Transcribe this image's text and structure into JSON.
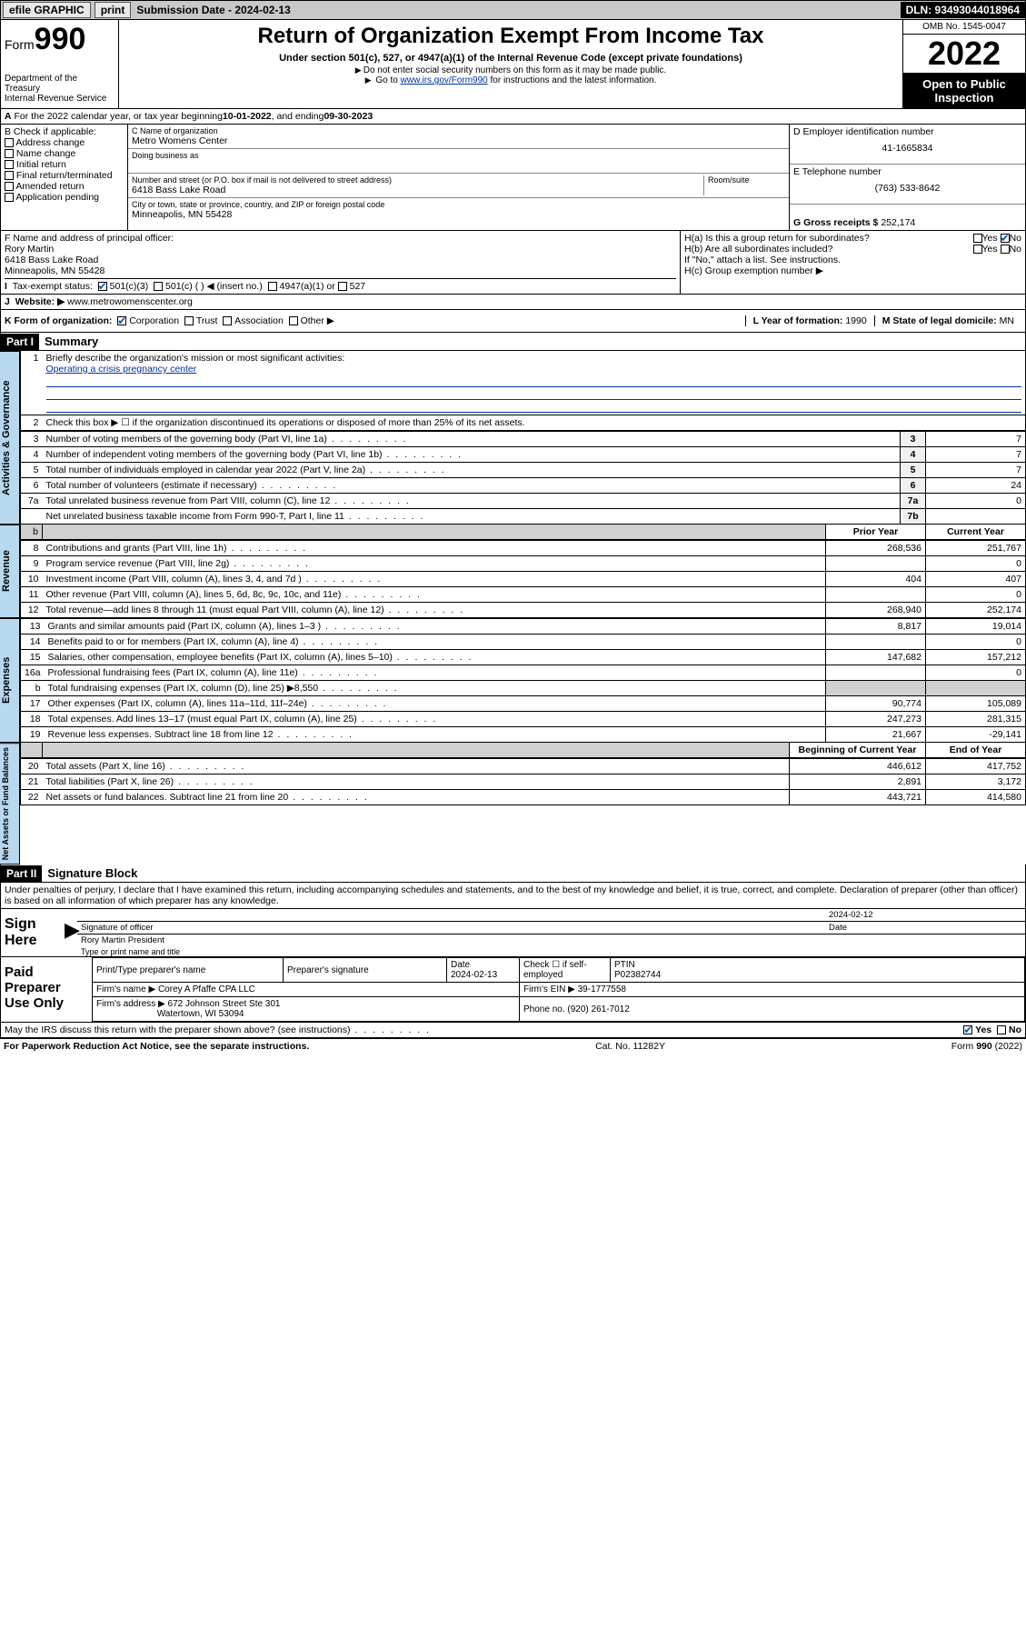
{
  "topbar": {
    "efile": "efile GRAPHIC",
    "print": "print",
    "subdate_label": "Submission Date - 2024-02-13",
    "dln": "DLN: 93493044018964"
  },
  "header": {
    "form_word": "Form",
    "form_num": "990",
    "title": "Return of Organization Exempt From Income Tax",
    "subtitle": "Under section 501(c), 527, or 4947(a)(1) of the Internal Revenue Code (except private foundations)",
    "note1": "Do not enter social security numbers on this form as it may be made public.",
    "note2_pre": "Go to ",
    "note2_link": "www.irs.gov/Form990",
    "note2_post": " for instructions and the latest information.",
    "dept": "Department of the Treasury",
    "irs": "Internal Revenue Service",
    "omb": "OMB No. 1545-0047",
    "year": "2022",
    "inspect1": "Open to Public",
    "inspect2": "Inspection"
  },
  "line_a": {
    "text_pre": "For the 2022 calendar year, or tax year beginning ",
    "begin": "10-01-2022",
    "mid": " , and ending ",
    "end": "09-30-2023"
  },
  "box_b": {
    "label": "B Check if applicable:",
    "opt1": "Address change",
    "opt2": "Name change",
    "opt3": "Initial return",
    "opt4": "Final return/terminated",
    "opt5": "Amended return",
    "opt6": "Application pending"
  },
  "box_c": {
    "label": "C Name of organization",
    "name": "Metro Womens Center",
    "dba_label": "Doing business as",
    "street_label": "Number and street (or P.O. box if mail is not delivered to street address)",
    "room_label": "Room/suite",
    "street": "6418 Bass Lake Road",
    "city_label": "City or town, state or province, country, and ZIP or foreign postal code",
    "city": "Minneapolis, MN  55428"
  },
  "box_d": {
    "label": "D Employer identification number",
    "ein": "41-1665834"
  },
  "box_e": {
    "label": "E Telephone number",
    "phone": "(763) 533-8642"
  },
  "box_g": {
    "label": "G Gross receipts $",
    "amount": "252,174"
  },
  "box_f": {
    "label": "F  Name and address of principal officer:",
    "name": "Rory Martin",
    "addr1": "6418 Bass Lake Road",
    "addr2": "Minneapolis, MN  55428"
  },
  "box_h": {
    "a_label": "H(a)  Is this a group return for subordinates?",
    "b_label": "H(b)  Are all subordinates included?",
    "b_note": "If \"No,\" attach a list. See instructions.",
    "c_label": "H(c)  Group exemption number ▶",
    "yes": "Yes",
    "no": "No"
  },
  "line_i": {
    "label": "Tax-exempt status:",
    "opt1": "501(c)(3)",
    "opt2": "501(c) (  ) ◀ (insert no.)",
    "opt3": "4947(a)(1) or",
    "opt4": "527"
  },
  "line_j": {
    "label": "Website: ▶",
    "url": "www.metrowomenscenter.org"
  },
  "line_k": {
    "label": "K Form of organization:",
    "opt1": "Corporation",
    "opt2": "Trust",
    "opt3": "Association",
    "opt4": "Other ▶"
  },
  "line_l": {
    "label": "L Year of formation:",
    "val": "1990"
  },
  "line_m": {
    "label": "M State of legal domicile:",
    "val": "MN"
  },
  "part1": {
    "hdr": "Part I",
    "title": "Summary",
    "q1": "Briefly describe the organization's mission or most significant activities:",
    "mission": "Operating a crisis pregnancy center",
    "q2": "Check this box ▶ ☐  if the organization discontinued its operations or disposed of more than 25% of its net assets.",
    "rows_gov": [
      {
        "n": "3",
        "t": "Number of voting members of the governing body (Part VI, line 1a)",
        "box": "3",
        "v": "7"
      },
      {
        "n": "4",
        "t": "Number of independent voting members of the governing body (Part VI, line 1b)",
        "box": "4",
        "v": "7"
      },
      {
        "n": "5",
        "t": "Total number of individuals employed in calendar year 2022 (Part V, line 2a)",
        "box": "5",
        "v": "7"
      },
      {
        "n": "6",
        "t": "Total number of volunteers (estimate if necessary)",
        "box": "6",
        "v": "24"
      },
      {
        "n": "7a",
        "t": "Total unrelated business revenue from Part VIII, column (C), line 12",
        "box": "7a",
        "v": "0"
      },
      {
        "n": "",
        "t": "Net unrelated business taxable income from Form 990-T, Part I, line 11",
        "box": "7b",
        "v": ""
      }
    ],
    "col_prior": "Prior Year",
    "col_current": "Current Year",
    "rows_rev": [
      {
        "n": "8",
        "t": "Contributions and grants (Part VIII, line 1h)",
        "p": "268,536",
        "c": "251,767"
      },
      {
        "n": "9",
        "t": "Program service revenue (Part VIII, line 2g)",
        "p": "",
        "c": "0"
      },
      {
        "n": "10",
        "t": "Investment income (Part VIII, column (A), lines 3, 4, and 7d )",
        "p": "404",
        "c": "407"
      },
      {
        "n": "11",
        "t": "Other revenue (Part VIII, column (A), lines 5, 6d, 8c, 9c, 10c, and 11e)",
        "p": "",
        "c": "0"
      },
      {
        "n": "12",
        "t": "Total revenue—add lines 8 through 11 (must equal Part VIII, column (A), line 12)",
        "p": "268,940",
        "c": "252,174"
      }
    ],
    "rows_exp": [
      {
        "n": "13",
        "t": "Grants and similar amounts paid (Part IX, column (A), lines 1–3 )",
        "p": "8,817",
        "c": "19,014"
      },
      {
        "n": "14",
        "t": "Benefits paid to or for members (Part IX, column (A), line 4)",
        "p": "",
        "c": "0"
      },
      {
        "n": "15",
        "t": "Salaries, other compensation, employee benefits (Part IX, column (A), lines 5–10)",
        "p": "147,682",
        "c": "157,212"
      },
      {
        "n": "16a",
        "t": "Professional fundraising fees (Part IX, column (A), line 11e)",
        "p": "",
        "c": "0"
      },
      {
        "n": "b",
        "t": "Total fundraising expenses (Part IX, column (D), line 25) ▶8,550",
        "p": "shade",
        "c": "shade"
      },
      {
        "n": "17",
        "t": "Other expenses (Part IX, column (A), lines 11a–11d, 11f–24e)",
        "p": "90,774",
        "c": "105,089"
      },
      {
        "n": "18",
        "t": "Total expenses. Add lines 13–17 (must equal Part IX, column (A), line 25)",
        "p": "247,273",
        "c": "281,315"
      },
      {
        "n": "19",
        "t": "Revenue less expenses. Subtract line 18 from line 12",
        "p": "21,667",
        "c": "-29,141"
      }
    ],
    "col_begin": "Beginning of Current Year",
    "col_end": "End of Year",
    "rows_bal": [
      {
        "n": "20",
        "t": "Total assets (Part X, line 16)",
        "p": "446,612",
        "c": "417,752"
      },
      {
        "n": "21",
        "t": "Total liabilities (Part X, line 26)",
        "p": "2,891",
        "c": "3,172"
      },
      {
        "n": "22",
        "t": "Net assets or fund balances. Subtract line 21 from line 20",
        "p": "443,721",
        "c": "414,580"
      }
    ],
    "tab_gov": "Activities & Governance",
    "tab_rev": "Revenue",
    "tab_exp": "Expenses",
    "tab_bal": "Net Assets or Fund Balances"
  },
  "part2": {
    "hdr": "Part II",
    "title": "Signature Block",
    "decl": "Under penalties of perjury, I declare that I have examined this return, including accompanying schedules and statements, and to the best of my knowledge and belief, it is true, correct, and complete. Declaration of preparer (other than officer) is based on all information of which preparer has any knowledge.",
    "sign_here": "Sign Here",
    "sig_officer": "Signature of officer",
    "sig_date": "Date",
    "sig_date_val": "2024-02-12",
    "officer_name": "Rory Martin  President",
    "type_name": "Type or print name and title",
    "paid_prep": "Paid Preparer Use Only",
    "pt_name_label": "Print/Type preparer's name",
    "pt_sig_label": "Preparer's signature",
    "pt_date_label": "Date",
    "pt_date": "2024-02-13",
    "pt_check": "Check ☐ if self-employed",
    "ptin_label": "PTIN",
    "ptin": "P02382744",
    "firm_name_label": "Firm's name    ▶",
    "firm_name": "Corey A Pfaffe CPA LLC",
    "firm_ein_label": "Firm's EIN ▶",
    "firm_ein": "39-1777558",
    "firm_addr_label": "Firm's address ▶",
    "firm_addr1": "672 Johnson Street Ste 301",
    "firm_addr2": "Watertown, WI  53094",
    "firm_phone_label": "Phone no.",
    "firm_phone": "(920) 261-7012",
    "discuss": "May the IRS discuss this return with the preparer shown above? (see instructions)",
    "yes": "Yes",
    "no": "No"
  },
  "footer": {
    "left": "For Paperwork Reduction Act Notice, see the separate instructions.",
    "mid": "Cat. No. 11282Y",
    "right": "Form 990 (2022)"
  }
}
